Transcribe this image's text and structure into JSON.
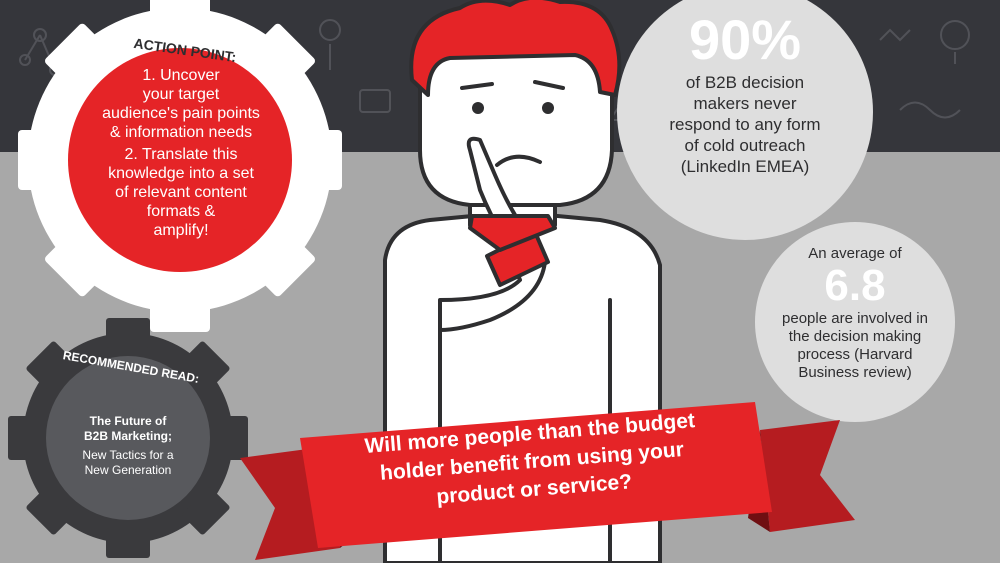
{
  "colors": {
    "dark_band": "#35363b",
    "grey_band": "#a8a8a8",
    "red": "#e52427",
    "dark_red": "#8e1418",
    "light_grey_circle": "#dedede",
    "white": "#ffffff",
    "dark_gear": "#3a3a3d",
    "outline": "#2e2e30"
  },
  "action_point": {
    "title": "ACTION POINT:",
    "step1_lines": [
      "1. Uncover",
      "your target",
      "audience's pain points",
      "& information needs"
    ],
    "step2_lines": [
      "2. Translate this",
      "knowledge into a set",
      "of relevant content",
      "formats &",
      "amplify!"
    ]
  },
  "recommended": {
    "title": "RECOMMENDED READ:",
    "book_title_lines": [
      "The Future of",
      "B2B Marketing;"
    ],
    "book_subtitle_lines": [
      "New Tactics for a",
      "New Generation"
    ]
  },
  "stat1": {
    "value": "90%",
    "lines": [
      "of B2B decision",
      "makers never",
      "respond to any form",
      "of cold outreach",
      "(LinkedIn EMEA)"
    ]
  },
  "stat2": {
    "intro": "An average of",
    "value": "6.8",
    "lines": [
      "people are involved in",
      "the decision making",
      "process (Harvard",
      "Business review)"
    ]
  },
  "banner": {
    "lines": [
      "Will more people than the budget",
      "holder benefit from using your",
      "product or service?"
    ]
  },
  "icons": [
    "person-thinking-icon",
    "gear-icon",
    "background-doodle-icons"
  ]
}
